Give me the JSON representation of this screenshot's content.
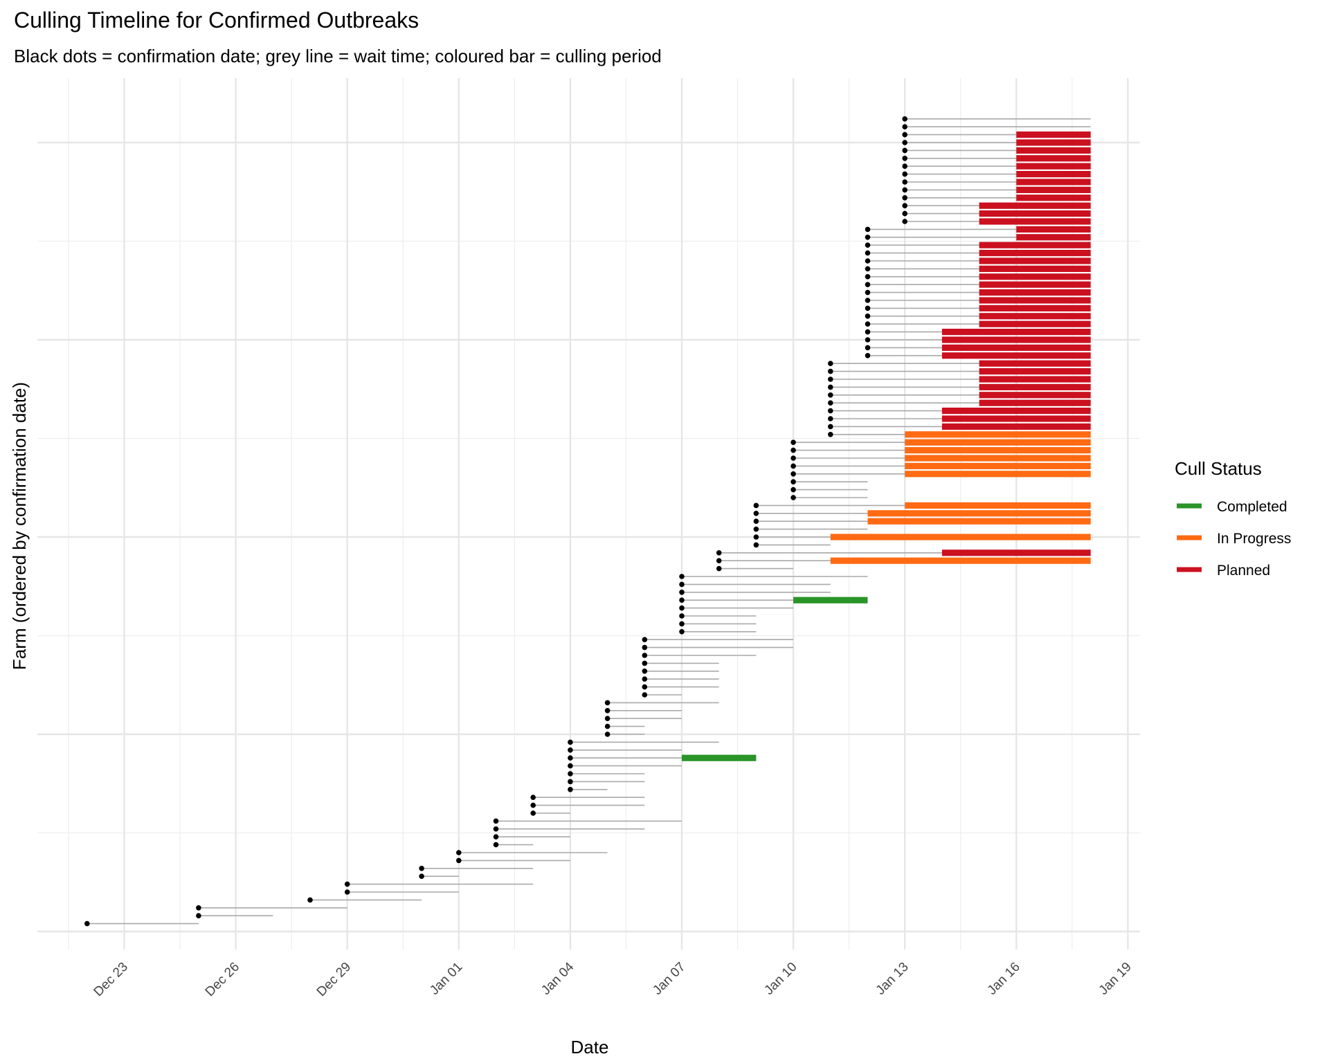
{
  "chart_data": {
    "type": "timeline",
    "title": "Culling Timeline for Confirmed Outbreaks",
    "subtitle": "Black dots = confirmation date; grey line = wait time; coloured bar = culling period",
    "xlabel": "Date",
    "ylabel": "Farm (ordered by confirmation date)",
    "x_origin_date": "Dec 23",
    "x_range_days": [
      -2.4,
      27.3
    ],
    "x_ticks": [
      {
        "day": 0,
        "label": "Dec 23"
      },
      {
        "day": 3,
        "label": "Dec 26"
      },
      {
        "day": 6,
        "label": "Dec 29"
      },
      {
        "day": 9,
        "label": "Jan 01"
      },
      {
        "day": 12,
        "label": "Jan 04"
      },
      {
        "day": 15,
        "label": "Jan 07"
      },
      {
        "day": 18,
        "label": "Jan 10"
      },
      {
        "day": 21,
        "label": "Jan 13"
      },
      {
        "day": 24,
        "label": "Jan 16"
      },
      {
        "day": 27,
        "label": "Jan 19"
      }
    ],
    "y_range": [
      -1,
      105
    ],
    "y_major_breaks": [
      0,
      25,
      50,
      75,
      100
    ],
    "grid": true,
    "legend": {
      "title": "Cull Status",
      "position": "right",
      "entries": [
        {
          "key": "completed",
          "label": "Completed",
          "color": "#2a9428"
        },
        {
          "key": "in_progress",
          "label": "In Progress",
          "color": "#ff6a13"
        },
        {
          "key": "planned",
          "label": "Planned",
          "color": "#cb1020"
        }
      ]
    },
    "row_fields": [
      "confirm_day",
      "wait_end_day",
      "cull_start_day",
      "cull_end_day",
      "status"
    ],
    "rows": [
      [
        -1,
        2,
        null,
        null,
        null
      ],
      [
        2,
        4,
        null,
        null,
        null
      ],
      [
        2,
        6,
        null,
        null,
        null
      ],
      [
        5,
        8,
        null,
        null,
        null
      ],
      [
        6,
        9,
        null,
        null,
        null
      ],
      [
        6,
        11,
        null,
        null,
        null
      ],
      [
        8,
        9,
        null,
        null,
        null
      ],
      [
        8,
        11,
        null,
        null,
        null
      ],
      [
        9,
        12,
        null,
        null,
        null
      ],
      [
        9,
        13,
        null,
        null,
        null
      ],
      [
        10,
        11,
        null,
        null,
        null
      ],
      [
        10,
        12,
        null,
        null,
        null
      ],
      [
        10,
        14,
        null,
        null,
        null
      ],
      [
        10,
        15,
        null,
        null,
        null
      ],
      [
        11,
        12,
        null,
        null,
        null
      ],
      [
        11,
        14,
        null,
        null,
        null
      ],
      [
        11,
        14,
        null,
        null,
        null
      ],
      [
        12,
        13,
        null,
        null,
        null
      ],
      [
        12,
        14,
        null,
        null,
        null
      ],
      [
        12,
        14,
        null,
        null,
        null
      ],
      [
        12,
        15,
        null,
        null,
        null
      ],
      [
        12,
        15,
        15,
        17,
        "completed"
      ],
      [
        12,
        15,
        null,
        null,
        null
      ],
      [
        12,
        16,
        null,
        null,
        null
      ],
      [
        13,
        14,
        null,
        null,
        null
      ],
      [
        13,
        14,
        null,
        null,
        null
      ],
      [
        13,
        15,
        null,
        null,
        null
      ],
      [
        13,
        15,
        null,
        null,
        null
      ],
      [
        13,
        16,
        null,
        null,
        null
      ],
      [
        14,
        15,
        null,
        null,
        null
      ],
      [
        14,
        16,
        null,
        null,
        null
      ],
      [
        14,
        16,
        null,
        null,
        null
      ],
      [
        14,
        16,
        null,
        null,
        null
      ],
      [
        14,
        16,
        null,
        null,
        null
      ],
      [
        14,
        17,
        null,
        null,
        null
      ],
      [
        14,
        18,
        null,
        null,
        null
      ],
      [
        14,
        18,
        null,
        null,
        null
      ],
      [
        15,
        17,
        null,
        null,
        null
      ],
      [
        15,
        17,
        null,
        null,
        null
      ],
      [
        15,
        17,
        null,
        null,
        null
      ],
      [
        15,
        18,
        null,
        null,
        null
      ],
      [
        15,
        18,
        18,
        20,
        "completed"
      ],
      [
        15,
        19,
        null,
        null,
        null
      ],
      [
        15,
        19,
        null,
        null,
        null
      ],
      [
        15,
        20,
        null,
        null,
        null
      ],
      [
        16,
        18,
        null,
        null,
        null
      ],
      [
        16,
        19,
        19,
        26,
        "in_progress"
      ],
      [
        16,
        22,
        22,
        26,
        "planned"
      ],
      [
        17,
        19,
        null,
        null,
        null
      ],
      [
        17,
        19,
        19,
        26,
        "in_progress"
      ],
      [
        17,
        20,
        null,
        null,
        null
      ],
      [
        17,
        20,
        20,
        26,
        "in_progress"
      ],
      [
        17,
        20,
        20,
        26,
        "in_progress"
      ],
      [
        17,
        21,
        21,
        26,
        "in_progress"
      ],
      [
        18,
        20,
        null,
        null,
        null
      ],
      [
        18,
        20,
        null,
        null,
        null
      ],
      [
        18,
        20,
        null,
        null,
        null
      ],
      [
        18,
        21,
        21,
        26,
        "in_progress"
      ],
      [
        18,
        21,
        21,
        26,
        "in_progress"
      ],
      [
        18,
        21,
        21,
        26,
        "in_progress"
      ],
      [
        18,
        21,
        21,
        26,
        "in_progress"
      ],
      [
        18,
        21,
        21,
        26,
        "in_progress"
      ],
      [
        19,
        21,
        21,
        26,
        "in_progress"
      ],
      [
        19,
        22,
        22,
        26,
        "planned"
      ],
      [
        19,
        22,
        22,
        26,
        "planned"
      ],
      [
        19,
        22,
        22,
        26,
        "planned"
      ],
      [
        19,
        23,
        23,
        26,
        "planned"
      ],
      [
        19,
        23,
        23,
        26,
        "planned"
      ],
      [
        19,
        23,
        23,
        26,
        "planned"
      ],
      [
        19,
        23,
        23,
        26,
        "planned"
      ],
      [
        19,
        23,
        23,
        26,
        "planned"
      ],
      [
        19,
        23,
        23,
        26,
        "planned"
      ],
      [
        20,
        22,
        22,
        26,
        "planned"
      ],
      [
        20,
        22,
        22,
        26,
        "planned"
      ],
      [
        20,
        22,
        22,
        26,
        "planned"
      ],
      [
        20,
        22,
        22,
        26,
        "planned"
      ],
      [
        20,
        23,
        23,
        26,
        "planned"
      ],
      [
        20,
        23,
        23,
        26,
        "planned"
      ],
      [
        20,
        23,
        23,
        26,
        "planned"
      ],
      [
        20,
        23,
        23,
        26,
        "planned"
      ],
      [
        20,
        23,
        23,
        26,
        "planned"
      ],
      [
        20,
        23,
        23,
        26,
        "planned"
      ],
      [
        20,
        23,
        23,
        26,
        "planned"
      ],
      [
        20,
        23,
        23,
        26,
        "planned"
      ],
      [
        20,
        23,
        23,
        26,
        "planned"
      ],
      [
        20,
        23,
        23,
        26,
        "planned"
      ],
      [
        20,
        23,
        23,
        26,
        "planned"
      ],
      [
        20,
        24,
        24,
        26,
        "planned"
      ],
      [
        20,
        24,
        24,
        26,
        "planned"
      ],
      [
        21,
        23,
        23,
        26,
        "planned"
      ],
      [
        21,
        23,
        23,
        26,
        "planned"
      ],
      [
        21,
        23,
        23,
        26,
        "planned"
      ],
      [
        21,
        24,
        24,
        26,
        "planned"
      ],
      [
        21,
        24,
        24,
        26,
        "planned"
      ],
      [
        21,
        24,
        24,
        26,
        "planned"
      ],
      [
        21,
        24,
        24,
        26,
        "planned"
      ],
      [
        21,
        24,
        24,
        26,
        "planned"
      ],
      [
        21,
        24,
        24,
        26,
        "planned"
      ],
      [
        21,
        24,
        24,
        26,
        "planned"
      ],
      [
        21,
        24,
        24,
        26,
        "planned"
      ],
      [
        21,
        24,
        24,
        26,
        "planned"
      ],
      [
        21,
        26,
        null,
        null,
        null
      ],
      [
        21,
        26,
        null,
        null,
        null
      ]
    ]
  }
}
